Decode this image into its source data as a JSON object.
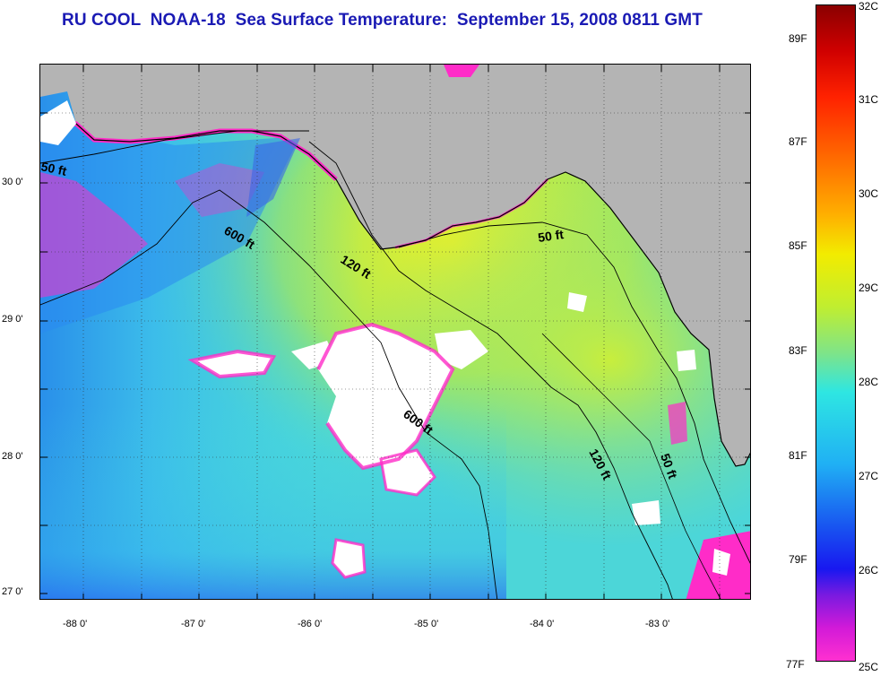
{
  "title": "RU COOL  NOAA-18  Sea Surface Temperature:  September 15, 2008 0811 GMT",
  "map": {
    "lon_labels": [
      "-88 0'",
      "-87 0'",
      "-86 0'",
      "-85 0'",
      "-84 0'",
      "-83 0'"
    ],
    "lat_labels": [
      "30 0'",
      "29 0'",
      "28 0'",
      "27 0'"
    ],
    "land_color": "#b4b4b4",
    "contours": [
      {
        "label": "50 ft"
      },
      {
        "label": "600 ft"
      },
      {
        "label": "120 ft"
      },
      {
        "label": "50 ft"
      },
      {
        "label": "600 ft"
      },
      {
        "label": "120 ft"
      },
      {
        "label": "50 ft"
      }
    ]
  },
  "colorbar": {
    "celsius_labels": [
      "32C",
      "31C",
      "30C",
      "29C",
      "28C",
      "27C",
      "26C",
      "25C"
    ],
    "fahrenheit_labels": [
      "89F",
      "87F",
      "85F",
      "83F",
      "81F",
      "79F",
      "77F"
    ],
    "range_c": [
      25,
      32
    ]
  }
}
